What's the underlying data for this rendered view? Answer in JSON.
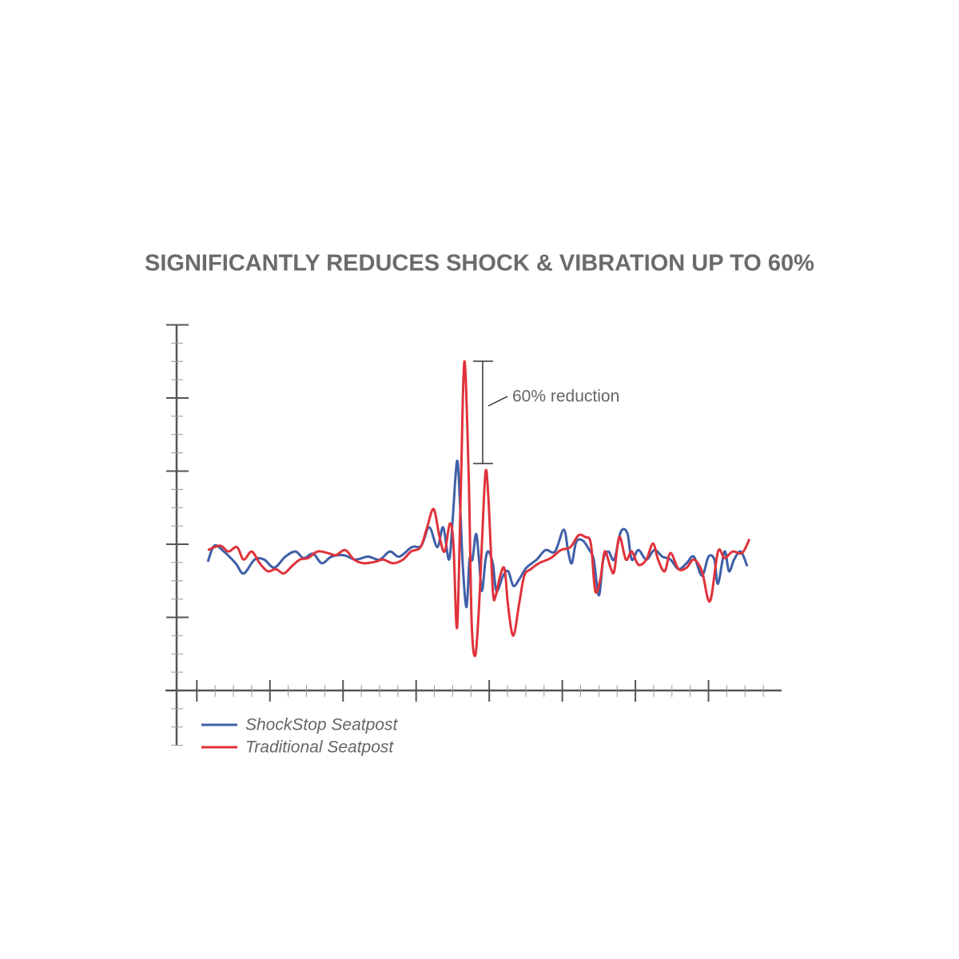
{
  "chart_data": {
    "type": "line",
    "title": "SIGNIFICANTLY REDUCES SHOCK & VIBRATION UP TO 60%",
    "annotation": "60% reduction",
    "xlim": [
      -0.43,
      8.0
    ],
    "ylim": [
      -0.75,
      5
    ],
    "xticks": [
      0,
      0.25,
      0.5,
      0.75,
      1,
      1.25,
      1.5,
      1.75,
      2,
      2.25,
      2.5,
      2.75,
      3,
      3.25,
      3.5,
      3.75,
      4,
      4.25,
      4.5,
      4.75,
      5,
      5.25,
      5.5,
      5.75,
      6,
      6.25,
      6.5,
      6.75,
      7,
      7.25,
      7.5,
      7.75
    ],
    "yticks": [
      -0.75,
      -0.5,
      -0.25,
      0,
      0.25,
      0.5,
      0.75,
      1,
      1.25,
      1.5,
      1.75,
      2,
      2.25,
      2.5,
      2.75,
      3,
      3.25,
      3.5,
      3.75,
      4,
      4.25,
      4.5,
      4.75,
      5
    ],
    "series": [
      {
        "name": "ShockStop Seatpost",
        "color": "#3f5fa8",
        "x": [
          0.15,
          0.24,
          0.37,
          0.53,
          0.64,
          0.79,
          0.92,
          1.06,
          1.21,
          1.35,
          1.46,
          1.59,
          1.71,
          1.84,
          2.01,
          2.17,
          2.34,
          2.5,
          2.64,
          2.77,
          2.94,
          3.07,
          3.18,
          3.29,
          3.37,
          3.45,
          3.5,
          3.56,
          3.6,
          3.64,
          3.69,
          3.73,
          3.77,
          3.82,
          3.86,
          3.9,
          3.95,
          3.99,
          4.05,
          4.1,
          4.19,
          4.26,
          4.33,
          4.41,
          4.51,
          4.65,
          4.77,
          4.9,
          5.02,
          5.08,
          5.13,
          5.19,
          5.28,
          5.37,
          5.43,
          5.5,
          5.56,
          5.63,
          5.71,
          5.8,
          5.89,
          5.95,
          6.04,
          6.15,
          6.26,
          6.37,
          6.48,
          6.59,
          6.7,
          6.8,
          6.91,
          7.0,
          7.08,
          7.13,
          7.22,
          7.28,
          7.35,
          7.44,
          7.53
        ],
        "values": [
          1.76,
          1.98,
          1.9,
          1.74,
          1.6,
          1.79,
          1.79,
          1.68,
          1.83,
          1.9,
          1.81,
          1.87,
          1.74,
          1.83,
          1.85,
          1.79,
          1.83,
          1.79,
          1.9,
          1.83,
          1.96,
          1.98,
          2.23,
          1.96,
          2.23,
          1.79,
          2.34,
          3.14,
          2.56,
          1.68,
          1.14,
          1.79,
          1.79,
          2.14,
          1.79,
          1.36,
          1.79,
          1.9,
          1.73,
          1.36,
          1.57,
          1.63,
          1.43,
          1.52,
          1.68,
          1.79,
          1.92,
          1.9,
          2.2,
          1.9,
          1.74,
          2.03,
          2.05,
          1.92,
          1.79,
          1.3,
          1.79,
          1.9,
          1.79,
          2.17,
          2.15,
          1.79,
          1.92,
          1.79,
          1.92,
          1.83,
          1.79,
          1.66,
          1.74,
          1.83,
          1.57,
          1.83,
          1.79,
          1.46,
          1.9,
          1.63,
          1.79,
          1.9,
          1.7
        ]
      },
      {
        "name": "Traditional Seatpost",
        "color": "#e0323a",
        "x": [
          0.15,
          0.32,
          0.43,
          0.55,
          0.64,
          0.75,
          0.86,
          0.97,
          1.08,
          1.19,
          1.3,
          1.41,
          1.52,
          1.65,
          1.79,
          1.9,
          2.03,
          2.15,
          2.28,
          2.44,
          2.55,
          2.68,
          2.82,
          2.93,
          3.06,
          3.15,
          3.24,
          3.32,
          3.39,
          3.46,
          3.51,
          3.56,
          3.61,
          3.66,
          3.72,
          3.76,
          3.81,
          3.86,
          3.9,
          3.95,
          3.99,
          4.05,
          4.09,
          4.15,
          4.21,
          4.26,
          4.33,
          4.41,
          4.48,
          4.57,
          4.68,
          4.84,
          4.98,
          5.11,
          5.22,
          5.31,
          5.39,
          5.45,
          5.52,
          5.58,
          5.66,
          5.71,
          5.78,
          5.87,
          5.95,
          6.04,
          6.15,
          6.24,
          6.31,
          6.4,
          6.48,
          6.59,
          6.7,
          6.8,
          6.91,
          7.02,
          7.13,
          7.22,
          7.33,
          7.46,
          7.56
        ],
        "values": [
          1.92,
          1.98,
          1.9,
          1.96,
          1.79,
          1.9,
          1.74,
          1.63,
          1.66,
          1.6,
          1.7,
          1.79,
          1.81,
          1.9,
          1.88,
          1.85,
          1.92,
          1.79,
          1.74,
          1.76,
          1.79,
          1.74,
          1.79,
          1.9,
          1.96,
          2.23,
          2.48,
          2.1,
          1.9,
          2.28,
          2.01,
          0.86,
          2.67,
          4.5,
          2.89,
          0.92,
          0.48,
          1.14,
          2.01,
          2.99,
          2.61,
          1.36,
          1.3,
          1.57,
          1.66,
          1.14,
          0.75,
          1.19,
          1.57,
          1.66,
          1.74,
          1.81,
          1.92,
          1.96,
          2.12,
          2.1,
          2.01,
          1.36,
          1.52,
          1.9,
          1.68,
          1.63,
          2.1,
          1.79,
          1.9,
          1.72,
          1.79,
          2.01,
          1.79,
          1.63,
          1.88,
          1.66,
          1.68,
          1.79,
          1.63,
          1.22,
          1.9,
          1.81,
          1.9,
          1.88,
          2.07
        ]
      }
    ]
  }
}
